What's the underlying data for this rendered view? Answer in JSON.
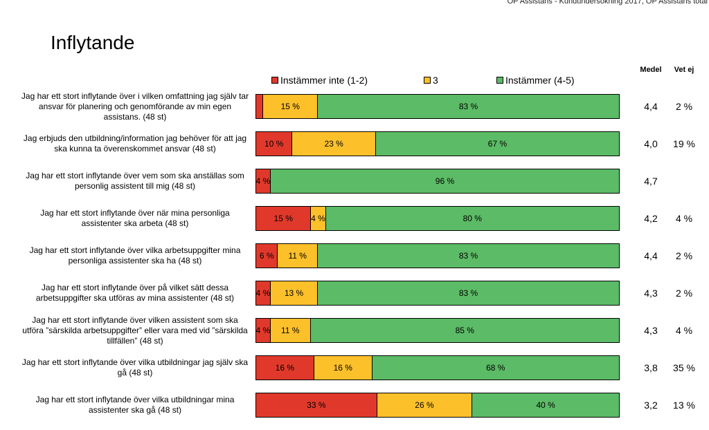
{
  "header": {
    "note": "OP Assistans - Kundundersökning 2017, OP Assistans total",
    "title": "Inflytande"
  },
  "columns": {
    "medel": "Medel",
    "vet_ej": "Vet ej"
  },
  "colors": {
    "red": "#e0392b",
    "yellow": "#fcc02b",
    "green": "#5cbb66"
  },
  "chart_data": {
    "type": "bar",
    "orientation": "horizontal",
    "stacked": true,
    "title": "Inflytande",
    "legend": [
      "Instämmer inte (1-2)",
      "3",
      "Instämmer (4-5)"
    ],
    "categories": [
      "Jag har ett stort inflytande över i vilken omfattning jag själv tar ansvar för planering och genomförande av min egen assistans. (48 st)",
      "Jag erbjuds den utbildning/information jag behöver för att jag ska kunna ta överenskommet ansvar (48 st)",
      "Jag har ett stort inflytande över vem som ska anställas som personlig assistent till mig (48 st)",
      "Jag har ett stort inflytande över när mina personliga assistenter ska arbeta (48 st)",
      "Jag har ett stort inflytande över vilka arbetsuppgifter mina personliga assistenter ska ha (48 st)",
      "Jag har ett stort inflytande över på vilket sätt dessa arbetsuppgifter ska utföras av mina assistenter (48 st)",
      "Jag har ett stort inflytande över vilken assistent som ska utföra ”särskilda arbetsuppgifter” eller vara med vid ”särskilda tillfällen” (48 st)",
      "Jag har ett stort inflytande över vilka utbildningar jag själv ska gå (48 st)",
      "Jag har ett stort inflytande över vilka utbildningar mina assistenter ska gå (48 st)"
    ],
    "series": [
      {
        "name": "Instämmer inte (1-2)",
        "values": [
          2,
          10,
          4,
          15,
          6,
          4,
          4,
          16,
          33
        ],
        "labels": [
          "",
          "10 %",
          "4 %",
          "15 %",
          "6 %",
          "4 %",
          "4 %",
          "16 %",
          "33 %"
        ]
      },
      {
        "name": "3",
        "values": [
          15,
          23,
          0,
          4,
          11,
          13,
          11,
          16,
          26
        ],
        "labels": [
          "15 %",
          "23 %",
          "",
          "4 %",
          "11 %",
          "13 %",
          "11 %",
          "16 %",
          "26 %"
        ]
      },
      {
        "name": "Instämmer (4-5)",
        "values": [
          83,
          67,
          96,
          80,
          83,
          83,
          85,
          68,
          40
        ],
        "labels": [
          "83 %",
          "67 %",
          "96 %",
          "80 %",
          "83 %",
          "83 %",
          "85 %",
          "68 %",
          "40 %"
        ]
      }
    ],
    "medel": [
      "4,4",
      "4,0",
      "4,7",
      "4,2",
      "4,4",
      "4,3",
      "4,3",
      "3,8",
      "3,2"
    ],
    "vet_ej": [
      "2 %",
      "19 %",
      "",
      "4 %",
      "2 %",
      "2 %",
      "4 %",
      "35 %",
      "13 %"
    ],
    "xlim": [
      0,
      100
    ]
  }
}
